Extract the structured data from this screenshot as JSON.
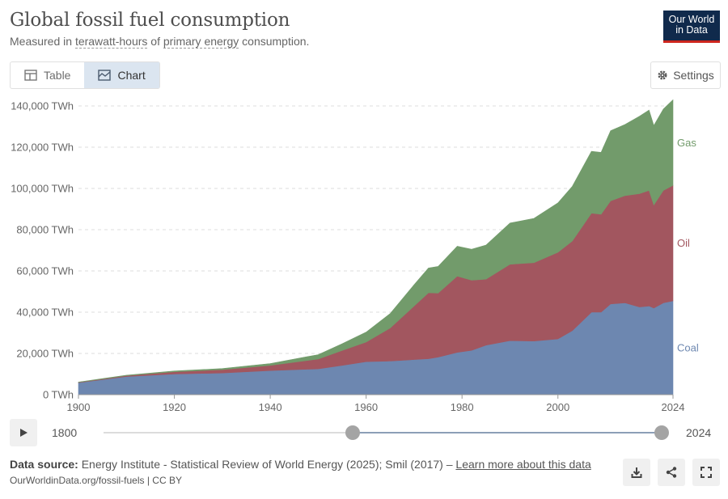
{
  "header": {
    "title": "Global fossil fuel consumption",
    "subtitle_pre": "Measured in ",
    "subtitle_term1": "terawatt-hours",
    "subtitle_mid": " of ",
    "subtitle_term2": "primary energy",
    "subtitle_post": " consumption."
  },
  "logo": {
    "line1": "Our World",
    "line2": "in Data"
  },
  "tabs": [
    {
      "label": "Table",
      "active": false,
      "icon": "table-icon"
    },
    {
      "label": "Chart",
      "active": true,
      "icon": "chart-icon"
    }
  ],
  "settings_label": "Settings",
  "colors": {
    "coal": "#6d87b0",
    "oil": "#a2565f",
    "gas": "#729b6b"
  },
  "chart_data": {
    "type": "area",
    "stacked": true,
    "x": [
      1900,
      1910,
      1920,
      1930,
      1940,
      1950,
      1955,
      1960,
      1965,
      1970,
      1973,
      1975,
      1979,
      1982,
      1985,
      1990,
      1995,
      2000,
      2003,
      2007,
      2009,
      2011,
      2014,
      2017,
      2019,
      2020,
      2022,
      2024
    ],
    "series": [
      {
        "name": "Coal",
        "values": [
          5800,
          8800,
          10000,
          10500,
          11700,
          12500,
          14200,
          16000,
          16300,
          17000,
          17400,
          18200,
          20500,
          21500,
          24000,
          26200,
          26000,
          27000,
          31000,
          40000,
          40000,
          44000,
          44500,
          42500,
          43000,
          42000,
          44500,
          45500
        ]
      },
      {
        "name": "Oil",
        "values": [
          200,
          400,
          1100,
          1600,
          2500,
          4800,
          7200,
          9500,
          16000,
          26000,
          32000,
          31000,
          37000,
          34000,
          32000,
          37000,
          38000,
          42000,
          43500,
          48000,
          47500,
          50000,
          52000,
          55000,
          56000,
          50000,
          54500,
          56000
        ]
      },
      {
        "name": "Gas",
        "values": [
          100,
          250,
          400,
          550,
          900,
          2100,
          3300,
          4800,
          7000,
          10300,
          12000,
          13000,
          14500,
          15000,
          16500,
          20000,
          21500,
          24000,
          26500,
          30000,
          30000,
          34000,
          34500,
          37500,
          39000,
          38500,
          39500,
          41500
        ]
      }
    ],
    "xticks": [
      "1900",
      "1920",
      "1940",
      "1960",
      "1980",
      "2000",
      "2024"
    ],
    "yticks": [
      "0 TWh",
      "20,000 TWh",
      "40,000 TWh",
      "60,000 TWh",
      "80,000 TWh",
      "100,000 TWh",
      "120,000 TWh",
      "140,000 TWh"
    ],
    "ylim": [
      0,
      140000
    ],
    "xlim": [
      1900,
      2024
    ],
    "grid": true,
    "legend": "right-inline"
  },
  "timeline": {
    "start_label": "1800",
    "end_label": "2024",
    "start_year": 1800,
    "end_year": 2024,
    "selected_from": 1900,
    "selected_to": 2024
  },
  "footer": {
    "source_label": "Data source:",
    "source_text": " Energy Institute - Statistical Review of World Energy (2025); Smil (2017) – ",
    "source_link": "Learn more about this data",
    "url": "OurWorldinData.org/fossil-fuels | CC BY"
  }
}
